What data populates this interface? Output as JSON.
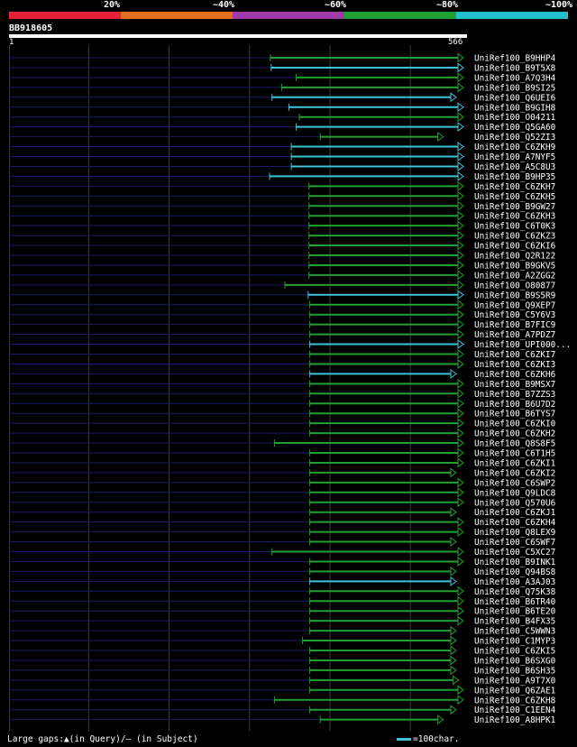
{
  "legend": {
    "labels": [
      "20%",
      "~40%",
      "~60%",
      "~80%",
      "~100%"
    ],
    "colors": [
      "#e8203a",
      "#e07020",
      "#a03aa8",
      "#20a030",
      "#20c0d0"
    ]
  },
  "footer": {
    "gaps_note": "Large gaps:▲(in Query)/— (in Subject)",
    "scale_note": "=100char."
  },
  "chart_data": {
    "type": "alignment",
    "query": {
      "name": "BB918605",
      "start": 1,
      "end": 566
    },
    "tick_labels": [
      "1",
      "566"
    ],
    "grid": true,
    "gridline_positions": [
      100,
      200,
      300,
      400,
      500
    ],
    "series_colors": {
      "~80%": "#20a030",
      "~100%": "#3cc3d8",
      "subject_tail": "#1a1a66"
    },
    "hits": [
      {
        "name": "UniRef100_B9HHP4",
        "start": 326,
        "end": 566,
        "identity": "~80%",
        "query_gap": false
      },
      {
        "name": "UniRef100_B9T5X8",
        "start": 327,
        "end": 566,
        "identity": "~100%",
        "query_gap": false
      },
      {
        "name": "UniRef100_A7Q3H4",
        "start": 358,
        "end": 566,
        "identity": "~80%",
        "query_gap": false
      },
      {
        "name": "UniRef100_B9SI25",
        "start": 340,
        "end": 566,
        "identity": "~80%",
        "query_gap": false
      },
      {
        "name": "UniRef100_Q6UEI6",
        "start": 328,
        "end": 557,
        "identity": "~100%",
        "query_gap": false
      },
      {
        "name": "UniRef100_B9GIH8",
        "start": 349,
        "end": 566,
        "identity": "~100%",
        "query_gap": false
      },
      {
        "name": "UniRef100_O04211",
        "start": 362,
        "end": 566,
        "identity": "~80%",
        "query_gap": false
      },
      {
        "name": "UniRef100_Q5GA60",
        "start": 358,
        "end": 566,
        "identity": "~100%",
        "query_gap": false
      },
      {
        "name": "UniRef100_Q52ZI3",
        "start": 388,
        "end": 541,
        "identity": "~80%",
        "query_gap": false
      },
      {
        "name": "UniRef100_C6ZKH9",
        "start": 352,
        "end": 566,
        "identity": "~100%",
        "query_gap": false
      },
      {
        "name": "UniRef100_A7NYF5",
        "start": 352,
        "end": 566,
        "identity": "~100%",
        "query_gap": false
      },
      {
        "name": "UniRef100_A5C8U3",
        "start": 352,
        "end": 566,
        "identity": "~100%",
        "query_gap": false
      },
      {
        "name": "UniRef100_B9HP35",
        "start": 325,
        "end": 566,
        "identity": "~100%",
        "query_gap": false
      },
      {
        "name": "UniRef100_C6ZKH7",
        "start": 374,
        "end": 566,
        "identity": "~80%",
        "query_gap": false
      },
      {
        "name": "UniRef100_C6ZKH5",
        "start": 374,
        "end": 566,
        "identity": "~80%",
        "query_gap": false
      },
      {
        "name": "UniRef100_B9GW27",
        "start": 374,
        "end": 566,
        "identity": "~80%",
        "query_gap": false
      },
      {
        "name": "UniRef100_C6ZKH3",
        "start": 374,
        "end": 566,
        "identity": "~80%",
        "query_gap": false
      },
      {
        "name": "UniRef100_C6T0K3",
        "start": 374,
        "end": 566,
        "identity": "~80%",
        "query_gap": false
      },
      {
        "name": "UniRef100_C6ZKZ3",
        "start": 374,
        "end": 566,
        "identity": "~80%",
        "query_gap": false
      },
      {
        "name": "UniRef100_C6ZKI6",
        "start": 374,
        "end": 566,
        "identity": "~80%",
        "query_gap": false
      },
      {
        "name": "UniRef100_Q2R122",
        "start": 374,
        "end": 566,
        "identity": "~80%",
        "query_gap": false
      },
      {
        "name": "UniRef100_B9GKV5",
        "start": 374,
        "end": 566,
        "identity": "~80%",
        "query_gap": false
      },
      {
        "name": "UniRef100_A2ZGG2",
        "start": 374,
        "end": 566,
        "identity": "~80%",
        "query_gap": false
      },
      {
        "name": "UniRef100_O80877",
        "start": 344,
        "end": 566,
        "identity": "~80%",
        "query_gap": false
      },
      {
        "name": "UniRef100_B9S5R9",
        "start": 373,
        "end": 566,
        "identity": "~100%",
        "query_gap": false
      },
      {
        "name": "UniRef100_Q9XEP7",
        "start": 375,
        "end": 566,
        "identity": "~80%",
        "query_gap": false
      },
      {
        "name": "UniRef100_C5Y6V3",
        "start": 375,
        "end": 566,
        "identity": "~80%",
        "query_gap": false
      },
      {
        "name": "UniRef100_B7FIC9",
        "start": 375,
        "end": 566,
        "identity": "~80%",
        "query_gap": false
      },
      {
        "name": "UniRef100_A7PDZ7",
        "start": 375,
        "end": 566,
        "identity": "~80%",
        "query_gap": false
      },
      {
        "name": "UniRef100_UPI000...",
        "start": 375,
        "end": 566,
        "identity": "~100%",
        "query_gap": false
      },
      {
        "name": "UniRef100_C6ZKI7",
        "start": 375,
        "end": 566,
        "identity": "~80%",
        "query_gap": false
      },
      {
        "name": "UniRef100_C6ZKI3",
        "start": 375,
        "end": 566,
        "identity": "~80%",
        "query_gap": false
      },
      {
        "name": "UniRef100_C6ZKH6",
        "start": 375,
        "end": 557,
        "identity": "~100%",
        "query_gap": false
      },
      {
        "name": "UniRef100_B9MSX7",
        "start": 375,
        "end": 566,
        "identity": "~80%",
        "query_gap": false
      },
      {
        "name": "UniRef100_B7ZZS3",
        "start": 375,
        "end": 566,
        "identity": "~80%",
        "query_gap": false
      },
      {
        "name": "UniRef100_B6U7D2",
        "start": 375,
        "end": 566,
        "identity": "~80%",
        "query_gap": false
      },
      {
        "name": "UniRef100_B6TYS7",
        "start": 375,
        "end": 566,
        "identity": "~80%",
        "query_gap": false
      },
      {
        "name": "UniRef100_C6ZKI0",
        "start": 375,
        "end": 566,
        "identity": "~80%",
        "query_gap": false
      },
      {
        "name": "UniRef100_C6ZKH2",
        "start": 375,
        "end": 566,
        "identity": "~80%",
        "query_gap": false
      },
      {
        "name": "UniRef100_Q8S8F5",
        "start": 331,
        "end": 566,
        "identity": "~80%",
        "query_gap": false
      },
      {
        "name": "UniRef100_C6T1H5",
        "start": 375,
        "end": 566,
        "identity": "~80%",
        "query_gap": false
      },
      {
        "name": "UniRef100_C6ZKI1",
        "start": 375,
        "end": 566,
        "identity": "~80%",
        "query_gap": false
      },
      {
        "name": "UniRef100_C6ZKI2",
        "start": 375,
        "end": 557,
        "identity": "~80%",
        "query_gap": false
      },
      {
        "name": "UniRef100_C6SWP2",
        "start": 375,
        "end": 566,
        "identity": "~80%",
        "query_gap": false
      },
      {
        "name": "UniRef100_Q9LDC8",
        "start": 375,
        "end": 566,
        "identity": "~80%",
        "query_gap": false
      },
      {
        "name": "UniRef100_Q570U6",
        "start": 375,
        "end": 566,
        "identity": "~80%",
        "query_gap": false
      },
      {
        "name": "UniRef100_C6ZKJ1",
        "start": 375,
        "end": 557,
        "identity": "~80%",
        "query_gap": false
      },
      {
        "name": "UniRef100_C6ZKH4",
        "start": 375,
        "end": 566,
        "identity": "~80%",
        "query_gap": false
      },
      {
        "name": "UniRef100_Q8LEX9",
        "start": 375,
        "end": 566,
        "identity": "~80%",
        "query_gap": false
      },
      {
        "name": "UniRef100_C6SWF7",
        "start": 375,
        "end": 557,
        "identity": "~80%",
        "query_gap": false
      },
      {
        "name": "UniRef100_C5XC27",
        "start": 328,
        "end": 566,
        "identity": "~80%",
        "query_gap": false
      },
      {
        "name": "UniRef100_B9INK1",
        "start": 375,
        "end": 566,
        "identity": "~80%",
        "query_gap": false
      },
      {
        "name": "UniRef100_Q94BS8",
        "start": 375,
        "end": 557,
        "identity": "~80%",
        "query_gap": false
      },
      {
        "name": "UniRef100_A3AJ03",
        "start": 375,
        "end": 557,
        "identity": "~100%",
        "query_gap": false
      },
      {
        "name": "UniRef100_Q75K38",
        "start": 375,
        "end": 566,
        "identity": "~80%",
        "query_gap": false
      },
      {
        "name": "UniRef100_B6TR40",
        "start": 375,
        "end": 566,
        "identity": "~80%",
        "query_gap": false
      },
      {
        "name": "UniRef100_B6TE20",
        "start": 375,
        "end": 566,
        "identity": "~80%",
        "query_gap": false
      },
      {
        "name": "UniRef100_B4FX35",
        "start": 375,
        "end": 566,
        "identity": "~80%",
        "query_gap": false
      },
      {
        "name": "UniRef100_C5WWN3",
        "start": 375,
        "end": 557,
        "identity": "~80%",
        "query_gap": false
      },
      {
        "name": "UniRef100_C1MYP3",
        "start": 366,
        "end": 557,
        "identity": "~80%",
        "query_gap": false
      },
      {
        "name": "UniRef100_C6ZKI5",
        "start": 375,
        "end": 557,
        "identity": "~80%",
        "query_gap": false
      },
      {
        "name": "UniRef100_B6SXG0",
        "start": 375,
        "end": 557,
        "identity": "~80%",
        "query_gap": false
      },
      {
        "name": "UniRef100_B6SH35",
        "start": 375,
        "end": 557,
        "identity": "~80%",
        "query_gap": false
      },
      {
        "name": "UniRef100_A9T7X0",
        "start": 375,
        "end": 560,
        "identity": "~80%",
        "query_gap": false
      },
      {
        "name": "UniRef100_Q6ZAE1",
        "start": 375,
        "end": 566,
        "identity": "~80%",
        "query_gap": false
      },
      {
        "name": "UniRef100_C6ZKH8",
        "start": 331,
        "end": 566,
        "identity": "~80%",
        "query_gap": false
      },
      {
        "name": "UniRef100_C1EEN4",
        "start": 375,
        "end": 557,
        "identity": "~80%",
        "query_gap": false
      },
      {
        "name": "UniRef100_A8HPK1",
        "start": 388,
        "end": 541,
        "identity": "~80%",
        "query_gap": false
      }
    ]
  }
}
